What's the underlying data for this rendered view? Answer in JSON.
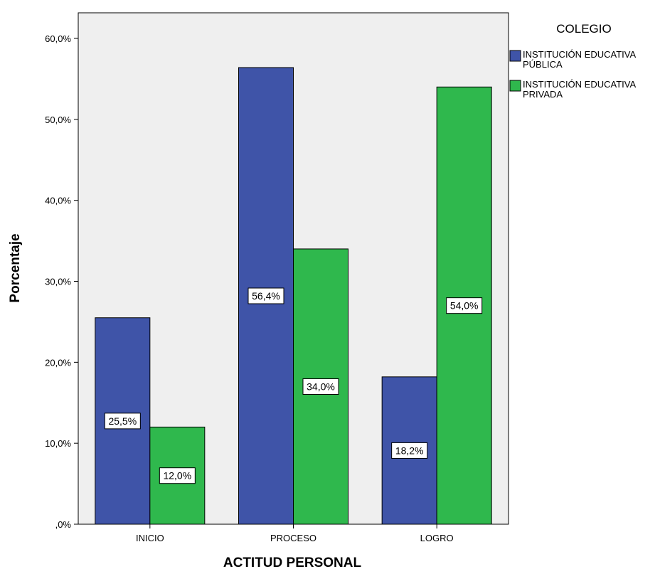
{
  "chart_data": {
    "type": "bar",
    "xlabel": "ACTITUD PERSONAL",
    "ylabel": "Porcentaje",
    "categories": [
      "INICIO",
      "PROCESO",
      "LOGRO"
    ],
    "ylim": [
      0,
      60
    ],
    "yticks": [
      {
        "value": 0,
        "label": ",0%"
      },
      {
        "value": 10,
        "label": "10,0%"
      },
      {
        "value": 20,
        "label": "20,0%"
      },
      {
        "value": 30,
        "label": "30,0%"
      },
      {
        "value": 40,
        "label": "40,0%"
      },
      {
        "value": 50,
        "label": "50,0%"
      },
      {
        "value": 60,
        "label": "60,0%"
      }
    ],
    "legend_title": "COLEGIO",
    "legend_position": "top-right, outside plot",
    "series": [
      {
        "name": "INSTITUCIÓN EDUCATIVA PÚBLICA",
        "legend_lines": [
          "INSTITUCIÓN EDUCATIVA",
          "PÚBLICA"
        ],
        "values": [
          25.5,
          56.4,
          18.2
        ],
        "labels": [
          "25,5%",
          "56,4%",
          "18,2%"
        ],
        "color": "#3f54a8"
      },
      {
        "name": "INSTITUCIÓN EDUCATIVA PRIVADA",
        "legend_lines": [
          "INSTITUCIÓN EDUCATIVA",
          "PRIVADA"
        ],
        "values": [
          12.0,
          34.0,
          54.0
        ],
        "labels": [
          "12,0%",
          "34,0%",
          "54,0%"
        ],
        "color": "#2fb84d"
      }
    ],
    "plot_background": "#efefef",
    "grid": false
  }
}
